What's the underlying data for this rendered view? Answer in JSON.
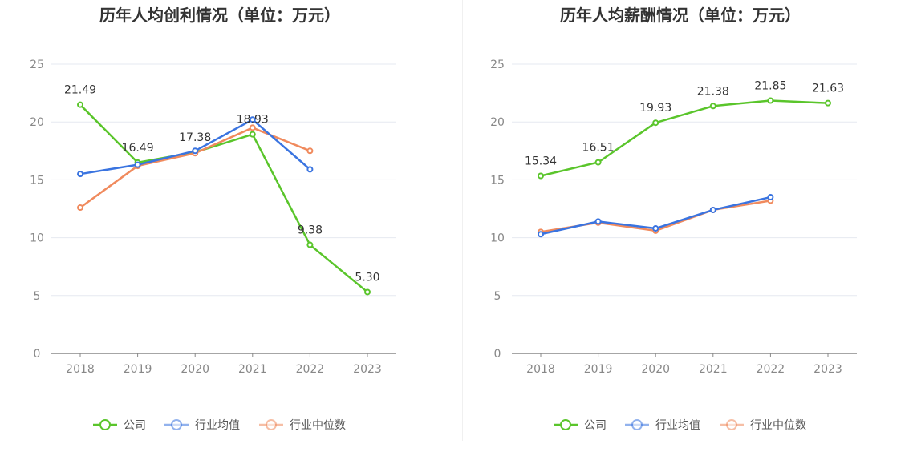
{
  "colors": {
    "company": "#5ac52b",
    "industry_avg": "#3a74e0",
    "industry_median": "#f08a5d",
    "grid": "#e6e9f0",
    "axis": "#888888"
  },
  "legend": {
    "company": "公司",
    "industry_avg": "行业均值",
    "industry_median": "行业中位数"
  },
  "chart_data": [
    {
      "type": "line",
      "title": "历年人均创利情况（单位：万元）",
      "categories": [
        "2018",
        "2019",
        "2020",
        "2021",
        "2022",
        "2023"
      ],
      "ylim": [
        0,
        25
      ],
      "yticks": [
        "0",
        "5",
        "10",
        "15",
        "20",
        "25"
      ],
      "series": [
        {
          "key": "company",
          "name": "公司",
          "values": [
            21.49,
            16.49,
            17.38,
            18.93,
            9.38,
            5.3
          ],
          "labels": [
            "21.49",
            "16.49",
            "17.38",
            "18.93",
            "9.38",
            "5.30"
          ]
        },
        {
          "key": "industry_avg",
          "name": "行业均值",
          "values": [
            15.5,
            16.3,
            17.5,
            20.2,
            15.9,
            null
          ]
        },
        {
          "key": "industry_median",
          "name": "行业中位数",
          "values": [
            12.6,
            16.2,
            17.3,
            19.5,
            17.5,
            null
          ]
        }
      ]
    },
    {
      "type": "line",
      "title": "历年人均薪酬情况（单位：万元）",
      "categories": [
        "2018",
        "2019",
        "2020",
        "2021",
        "2022",
        "2023"
      ],
      "ylim": [
        0,
        25
      ],
      "yticks": [
        "0",
        "5",
        "10",
        "15",
        "20",
        "25"
      ],
      "series": [
        {
          "key": "company",
          "name": "公司",
          "values": [
            15.34,
            16.51,
            19.93,
            21.38,
            21.85,
            21.63
          ],
          "labels": [
            "15.34",
            "16.51",
            "19.93",
            "21.38",
            "21.85",
            "21.63"
          ]
        },
        {
          "key": "industry_avg",
          "name": "行业均值",
          "values": [
            10.3,
            11.4,
            10.8,
            12.4,
            13.5,
            null
          ]
        },
        {
          "key": "industry_median",
          "name": "行业中位数",
          "values": [
            10.5,
            11.3,
            10.6,
            12.4,
            13.2,
            null
          ]
        }
      ]
    }
  ]
}
